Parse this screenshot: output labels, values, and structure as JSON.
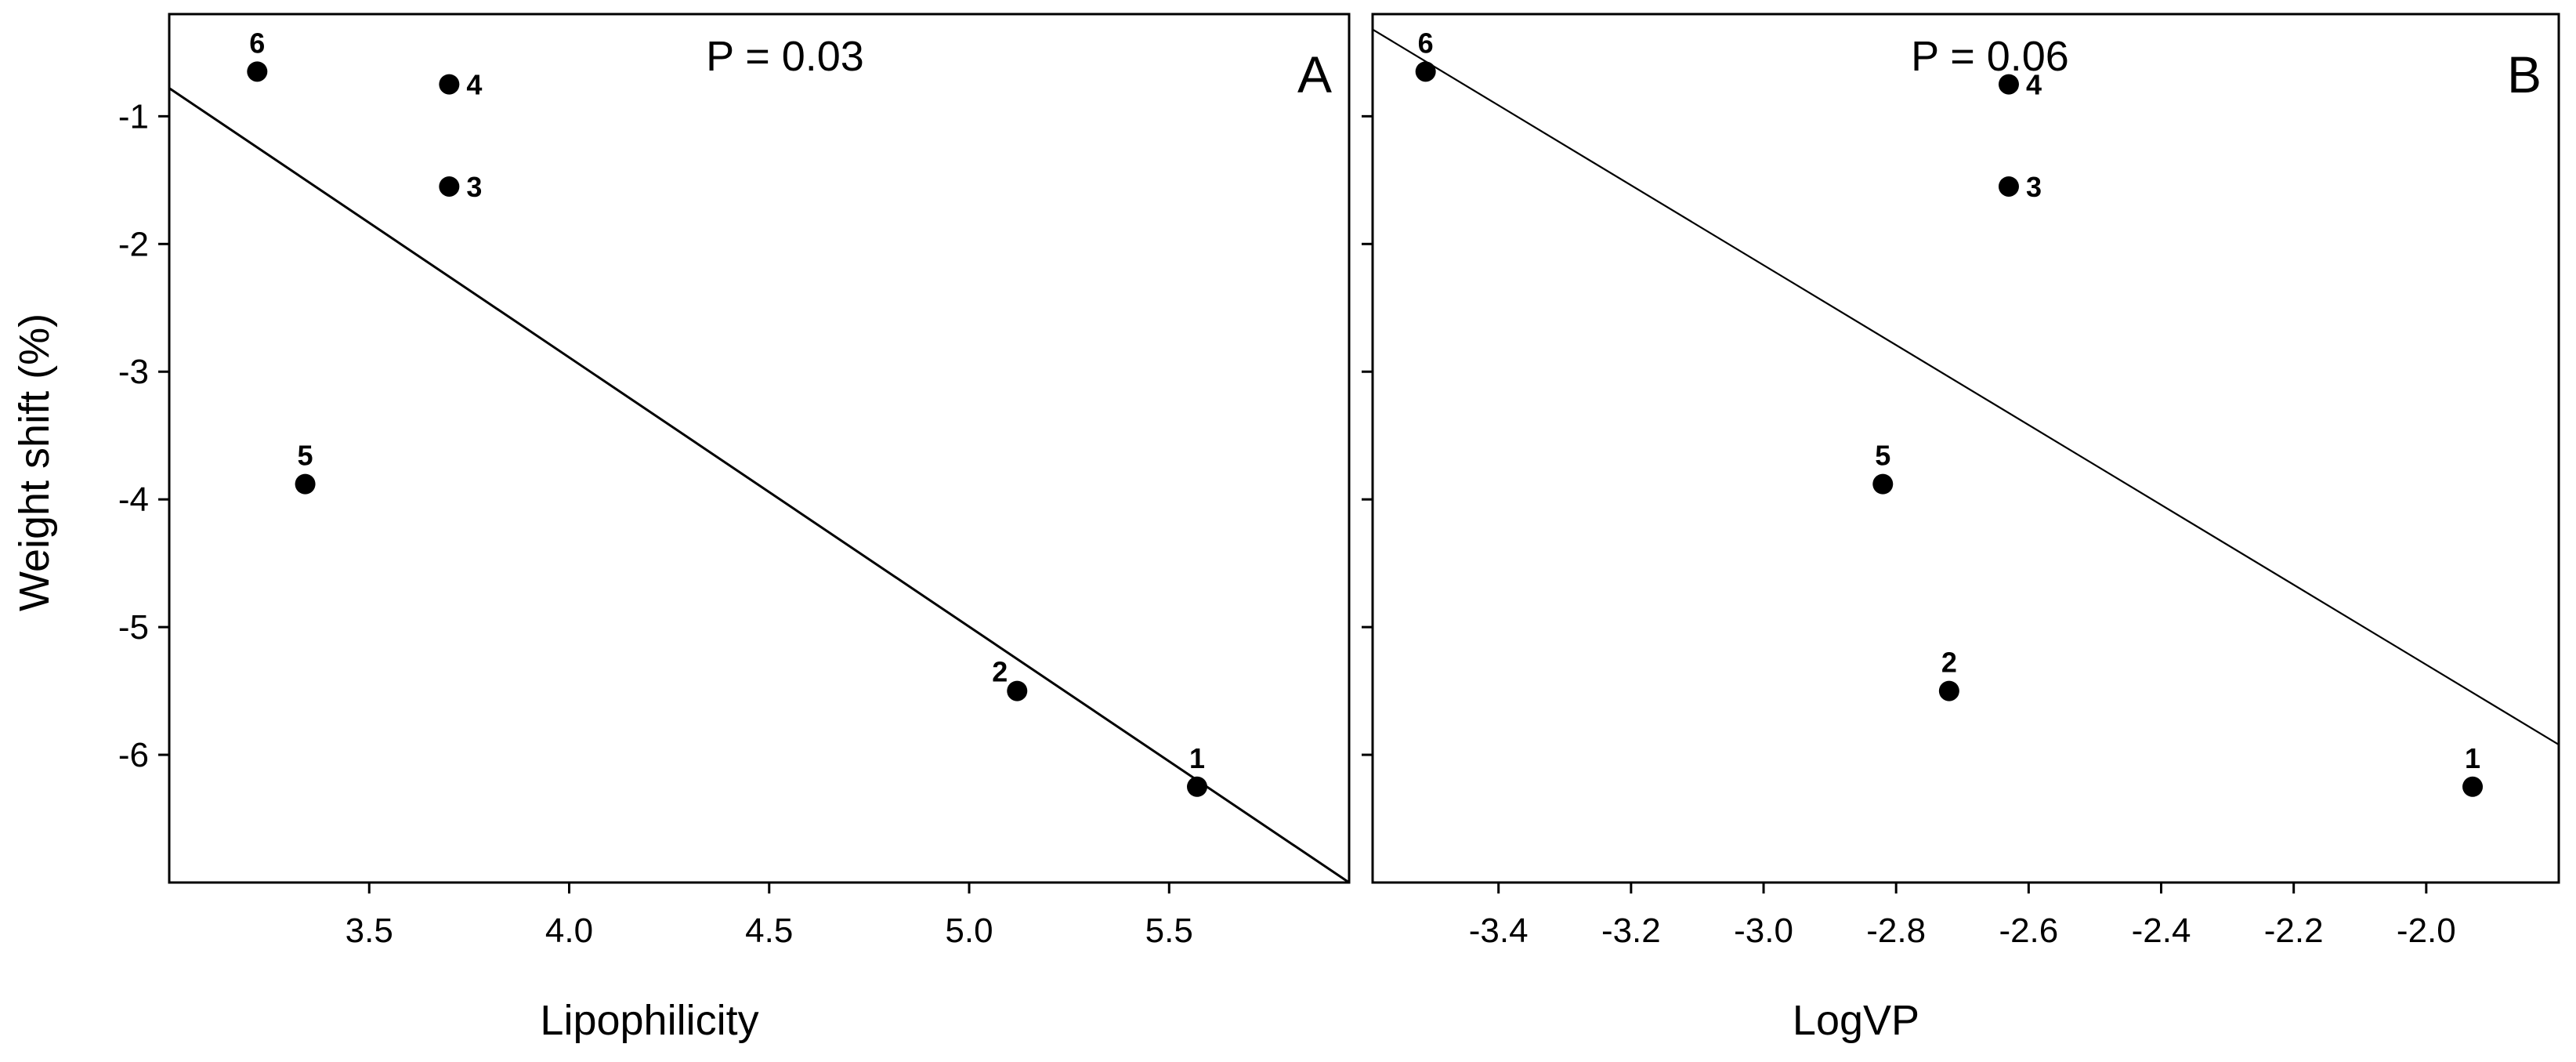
{
  "ylabel": "Weight shift (%)",
  "chart_data": [
    {
      "type": "scatter",
      "panel": "A",
      "annotation": "P = 0.03",
      "xlabel": "Lipophilicity",
      "xlim": [
        3.0,
        5.95
      ],
      "ylim": [
        -7.0,
        -0.2
      ],
      "xticks": [
        3.5,
        4.0,
        4.5,
        5.0,
        5.5
      ],
      "xtick_labels": [
        "3.5",
        "4.0",
        "4.5",
        "5.0",
        "5.5"
      ],
      "yticks": [
        -1,
        -2,
        -3,
        -4,
        -5,
        -6
      ],
      "ytick_labels": [
        "-1",
        "-2",
        "-3",
        "-4",
        "-5",
        "-6"
      ],
      "points": [
        {
          "label": "1",
          "x": 5.57,
          "y": -6.25,
          "label_pos": "above"
        },
        {
          "label": "2",
          "x": 5.12,
          "y": -5.5,
          "label_pos": "upper-left"
        },
        {
          "label": "3",
          "x": 3.7,
          "y": -1.55,
          "label_pos": "right"
        },
        {
          "label": "4",
          "x": 3.7,
          "y": -0.75,
          "label_pos": "right"
        },
        {
          "label": "5",
          "x": 3.34,
          "y": -3.88,
          "label_pos": "above"
        },
        {
          "label": "6",
          "x": 3.22,
          "y": -0.65,
          "label_pos": "above"
        }
      ],
      "fit_line": {
        "x": [
          3.0,
          5.95
        ],
        "y": [
          -0.78,
          -7.0
        ]
      },
      "grid": false,
      "legend": false
    },
    {
      "type": "scatter",
      "panel": "B",
      "annotation": "P = 0.06",
      "xlabel": "LogVP",
      "xlim": [
        -3.59,
        -1.8
      ],
      "ylim": [
        -7.0,
        -0.2
      ],
      "xticks": [
        -3.4,
        -3.2,
        -3.0,
        -2.8,
        -2.6,
        -2.4,
        -2.2,
        -2.0
      ],
      "xtick_labels": [
        "-3.4",
        "-3.2",
        "-3.0",
        "-2.8",
        "-2.6",
        "-2.4",
        "-2.2",
        "-2.0"
      ],
      "yticks": [
        -1,
        -2,
        -3,
        -4,
        -5,
        -6
      ],
      "ytick_labels": [],
      "points": [
        {
          "label": "1",
          "x": -1.93,
          "y": -6.25,
          "label_pos": "above"
        },
        {
          "label": "2",
          "x": -2.72,
          "y": -5.5,
          "label_pos": "above"
        },
        {
          "label": "3",
          "x": -2.63,
          "y": -1.55,
          "label_pos": "right"
        },
        {
          "label": "4",
          "x": -2.63,
          "y": -0.75,
          "label_pos": "right"
        },
        {
          "label": "5",
          "x": -2.82,
          "y": -3.88,
          "label_pos": "above"
        },
        {
          "label": "6",
          "x": -3.51,
          "y": -0.65,
          "label_pos": "above"
        }
      ],
      "fit_line": {
        "x": [
          -3.59,
          -1.8
        ],
        "y": [
          -0.32,
          -5.92
        ]
      },
      "grid": false,
      "legend": false
    }
  ]
}
